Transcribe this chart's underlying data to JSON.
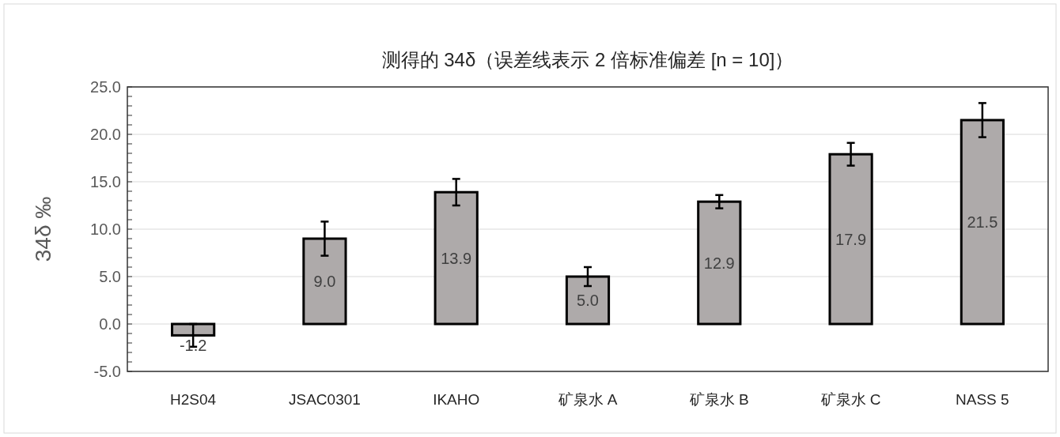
{
  "chart_data": {
    "type": "bar",
    "title": "测得的 34δ（误差线表示 2 倍标准偏差 [n = 10]）",
    "ylabel": "34δ ‰",
    "categories": [
      "H2S04",
      "JSAC0301",
      "IKAHO",
      "矿泉水 A",
      "矿泉水 B",
      "矿泉水 C",
      "NASS 5"
    ],
    "values": [
      -1.2,
      9.0,
      13.9,
      5.0,
      12.9,
      17.9,
      21.5
    ],
    "value_labels": [
      "-1.2",
      "9.0",
      "13.9",
      "5.0",
      "12.9",
      "17.9",
      "21.5"
    ],
    "errors": [
      1.2,
      1.8,
      1.4,
      1.0,
      0.7,
      1.2,
      1.8
    ],
    "color": "#aeaaaa",
    "ylim": [
      -5,
      25
    ],
    "yticks": [
      {
        "value": -5,
        "label": "-5.0"
      },
      {
        "value": 0,
        "label": "0.0"
      },
      {
        "value": 5,
        "label": "5.0"
      },
      {
        "value": 10,
        "label": "10.0"
      },
      {
        "value": 15,
        "label": "15.0"
      },
      {
        "value": 20,
        "label": "20.0"
      },
      {
        "value": 25,
        "label": "25.0"
      }
    ],
    "grid": "y"
  }
}
